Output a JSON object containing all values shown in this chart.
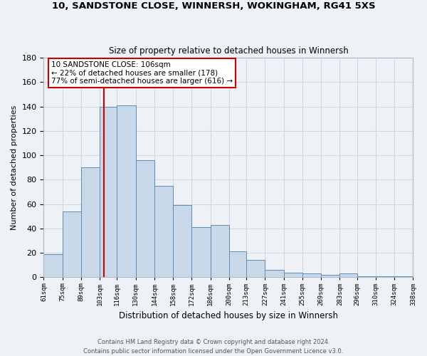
{
  "title": "10, SANDSTONE CLOSE, WINNERSH, WOKINGHAM, RG41 5XS",
  "subtitle": "Size of property relative to detached houses in Winnersh",
  "xlabel": "Distribution of detached houses by size in Winnersh",
  "ylabel": "Number of detached properties",
  "bar_edges": [
    61,
    75,
    89,
    103,
    116,
    130,
    144,
    158,
    172,
    186,
    200,
    213,
    227,
    241,
    255,
    269,
    283,
    296,
    310,
    324,
    338
  ],
  "bar_heights": [
    19,
    54,
    90,
    140,
    141,
    96,
    75,
    59,
    41,
    43,
    21,
    14,
    6,
    4,
    3,
    2,
    3,
    1,
    1,
    1
  ],
  "bar_color": "#c8d8e8",
  "bar_edge_color": "#5b8db8",
  "vline_x": 106,
  "vline_color": "#cc0000",
  "ylim": [
    0,
    180
  ],
  "yticks": [
    0,
    20,
    40,
    60,
    80,
    100,
    120,
    140,
    160,
    180
  ],
  "xtick_labels": [
    "61sqm",
    "75sqm",
    "89sqm",
    "103sqm",
    "116sqm",
    "130sqm",
    "144sqm",
    "158sqm",
    "172sqm",
    "186sqm",
    "200sqm",
    "213sqm",
    "227sqm",
    "241sqm",
    "255sqm",
    "269sqm",
    "283sqm",
    "296sqm",
    "310sqm",
    "324sqm",
    "338sqm"
  ],
  "annotation_title": "10 SANDSTONE CLOSE: 106sqm",
  "annotation_line1": "← 22% of detached houses are smaller (178)",
  "annotation_line2": "77% of semi-detached houses are larger (616) →",
  "annotation_box_color": "#ffffff",
  "annotation_box_edge": "#cc0000",
  "grid_color": "#d0d8e8",
  "bg_color": "#eef2f6",
  "footer1": "Contains HM Land Registry data © Crown copyright and database right 2024.",
  "footer2": "Contains public sector information licensed under the Open Government Licence v3.0."
}
